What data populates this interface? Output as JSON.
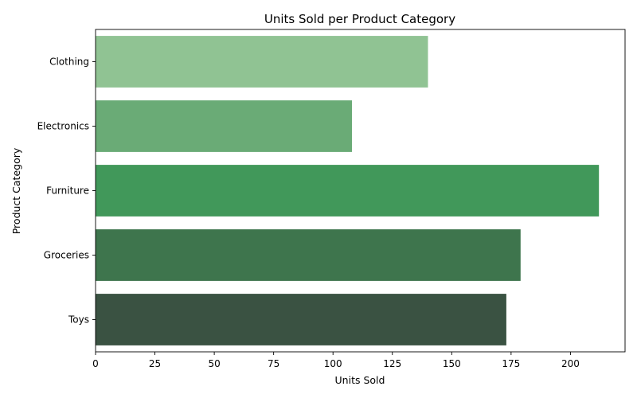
{
  "chart_data": {
    "type": "bar",
    "orientation": "horizontal",
    "title": "Units Sold per Product Category",
    "xlabel": "Units Sold",
    "ylabel": "Product Category",
    "categories": [
      "Clothing",
      "Electronics",
      "Furniture",
      "Groceries",
      "Toys"
    ],
    "values": [
      140,
      108,
      212,
      179,
      173
    ],
    "colors": [
      "#90c393",
      "#6aab76",
      "#41985a",
      "#3e754d",
      "#3a5242"
    ],
    "xlim": [
      0,
      223
    ],
    "xticks": [
      0,
      25,
      50,
      75,
      100,
      125,
      150,
      175,
      200
    ],
    "grid": false
  }
}
